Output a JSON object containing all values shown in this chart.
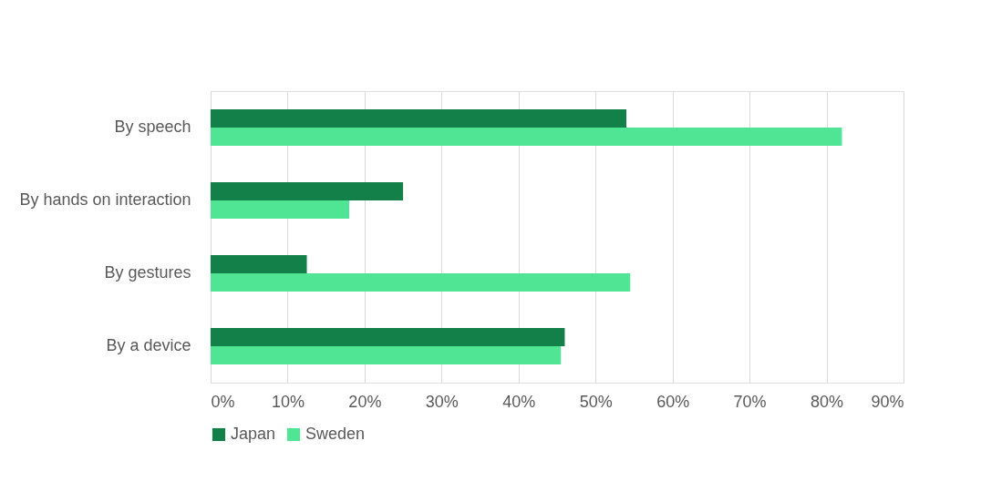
{
  "chart_data": {
    "type": "bar",
    "orientation": "horizontal",
    "categories": [
      "By speech",
      "By hands on interaction",
      "By gestures",
      "By a device"
    ],
    "series": [
      {
        "name": "Japan",
        "color": "#138049",
        "values": [
          54,
          25,
          12.5,
          46
        ]
      },
      {
        "name": "Sweden",
        "color": "#50e595",
        "values": [
          82,
          18,
          54.5,
          45.5
        ]
      }
    ],
    "xlim": [
      0,
      90
    ],
    "xticks": [
      {
        "value": 0,
        "label": "0%"
      },
      {
        "value": 10,
        "label": "10%"
      },
      {
        "value": 20,
        "label": "20%"
      },
      {
        "value": 30,
        "label": "30%"
      },
      {
        "value": 40,
        "label": "40%"
      },
      {
        "value": 50,
        "label": "50%"
      },
      {
        "value": 60,
        "label": "60%"
      },
      {
        "value": 70,
        "label": "70%"
      },
      {
        "value": 80,
        "label": "80%"
      },
      {
        "value": 90,
        "label": "90%"
      }
    ],
    "grid": "x",
    "legend": "bottom"
  }
}
